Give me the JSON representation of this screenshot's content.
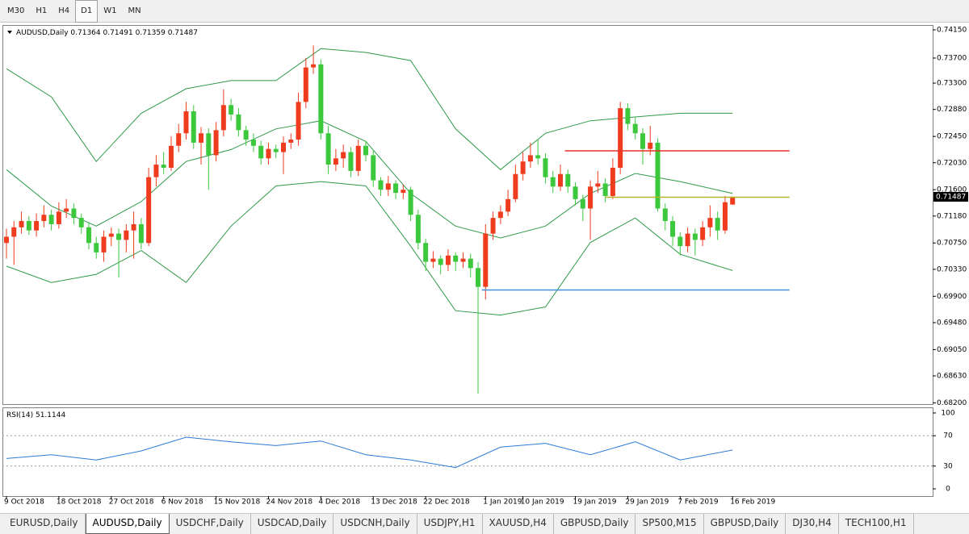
{
  "toolbar": [
    "M30",
    "H1",
    "H4",
    "D1",
    "W1",
    "MN"
  ],
  "tabs": [
    "EURUSD,Daily",
    "AUDUSD,Daily",
    "USDCHF,Daily",
    "USDCAD,Daily",
    "USDCNH,Daily",
    "USDJPY,H1",
    "XAUUSD,H4",
    "GBPUSD,Daily",
    "SP500,M15",
    "GBPUSD,Daily",
    "DJ30,H4",
    "TECH100,H1"
  ],
  "chart_data": {
    "type": "candlestick",
    "title": "AUDUSD,Daily",
    "up_color": "#f03c1e",
    "down_color": "#3cc83c",
    "ohlc": [
      [
        0.7075,
        0.7098,
        0.705,
        0.7085
      ],
      [
        0.7085,
        0.711,
        0.704,
        0.71
      ],
      [
        0.71,
        0.7125,
        0.709,
        0.711
      ],
      [
        0.711,
        0.7118,
        0.7088,
        0.7095
      ],
      [
        0.7095,
        0.7122,
        0.7085,
        0.711
      ],
      [
        0.711,
        0.7135,
        0.71,
        0.712
      ],
      [
        0.712,
        0.7128,
        0.7095,
        0.7105
      ],
      [
        0.7105,
        0.714,
        0.7098,
        0.7125
      ],
      [
        0.7125,
        0.7145,
        0.7115,
        0.713
      ],
      [
        0.713,
        0.7138,
        0.7105,
        0.7115
      ],
      [
        0.7115,
        0.7122,
        0.709,
        0.71
      ],
      [
        0.71,
        0.7108,
        0.7065,
        0.7075
      ],
      [
        0.7075,
        0.7085,
        0.705,
        0.706
      ],
      [
        0.706,
        0.7095,
        0.7045,
        0.7085
      ],
      [
        0.7085,
        0.71,
        0.707,
        0.709
      ],
      [
        0.709,
        0.7098,
        0.702,
        0.708
      ],
      [
        0.708,
        0.7105,
        0.706,
        0.7095
      ],
      [
        0.7095,
        0.7125,
        0.705,
        0.7105
      ],
      [
        0.7105,
        0.7115,
        0.7065,
        0.7075
      ],
      [
        0.7075,
        0.7195,
        0.707,
        0.718
      ],
      [
        0.718,
        0.7215,
        0.7165,
        0.72
      ],
      [
        0.72,
        0.722,
        0.7185,
        0.7195
      ],
      [
        0.7195,
        0.7245,
        0.719,
        0.723
      ],
      [
        0.723,
        0.7265,
        0.722,
        0.725
      ],
      [
        0.725,
        0.73,
        0.724,
        0.7285
      ],
      [
        0.7285,
        0.7295,
        0.7225,
        0.7235
      ],
      [
        0.7235,
        0.726,
        0.72,
        0.725
      ],
      [
        0.725,
        0.7258,
        0.716,
        0.7215
      ],
      [
        0.7215,
        0.7268,
        0.7205,
        0.7255
      ],
      [
        0.7255,
        0.732,
        0.7245,
        0.7295
      ],
      [
        0.7295,
        0.7305,
        0.727,
        0.728
      ],
      [
        0.728,
        0.729,
        0.7245,
        0.7255
      ],
      [
        0.7255,
        0.7262,
        0.723,
        0.724
      ],
      [
        0.724,
        0.725,
        0.722,
        0.723
      ],
      [
        0.723,
        0.7238,
        0.72,
        0.721
      ],
      [
        0.721,
        0.7235,
        0.72,
        0.7225
      ],
      [
        0.7225,
        0.7232,
        0.721,
        0.722
      ],
      [
        0.722,
        0.7245,
        0.7185,
        0.7235
      ],
      [
        0.7235,
        0.725,
        0.7225,
        0.724
      ],
      [
        0.724,
        0.7315,
        0.723,
        0.73
      ],
      [
        0.73,
        0.737,
        0.729,
        0.7355
      ],
      [
        0.7355,
        0.739,
        0.7345,
        0.736
      ],
      [
        0.736,
        0.7368,
        0.724,
        0.725
      ],
      [
        0.725,
        0.7262,
        0.7185,
        0.72
      ],
      [
        0.72,
        0.7225,
        0.719,
        0.721
      ],
      [
        0.721,
        0.7232,
        0.7195,
        0.722
      ],
      [
        0.722,
        0.7228,
        0.718,
        0.719
      ],
      [
        0.719,
        0.724,
        0.7182,
        0.723
      ],
      [
        0.723,
        0.7238,
        0.7205,
        0.7215
      ],
      [
        0.7215,
        0.7222,
        0.7165,
        0.7175
      ],
      [
        0.7175,
        0.718,
        0.715,
        0.716
      ],
      [
        0.716,
        0.7182,
        0.715,
        0.717
      ],
      [
        0.717,
        0.7175,
        0.7145,
        0.7155
      ],
      [
        0.7155,
        0.7168,
        0.7145,
        0.716
      ],
      [
        0.716,
        0.7165,
        0.711,
        0.712
      ],
      [
        0.712,
        0.7128,
        0.7065,
        0.7075
      ],
      [
        0.7075,
        0.7082,
        0.703,
        0.7045
      ],
      [
        0.7045,
        0.7062,
        0.7035,
        0.705
      ],
      [
        0.705,
        0.7055,
        0.7025,
        0.704
      ],
      [
        0.704,
        0.7065,
        0.703,
        0.7055
      ],
      [
        0.7055,
        0.706,
        0.703,
        0.7045
      ],
      [
        0.7045,
        0.706,
        0.7035,
        0.705
      ],
      [
        0.705,
        0.7058,
        0.702,
        0.7035
      ],
      [
        0.7035,
        0.7045,
        0.6835,
        0.7005
      ],
      [
        0.7005,
        0.7105,
        0.6985,
        0.709
      ],
      [
        0.709,
        0.7125,
        0.708,
        0.7115
      ],
      [
        0.7115,
        0.7135,
        0.7105,
        0.7125
      ],
      [
        0.7125,
        0.716,
        0.7118,
        0.7145
      ],
      [
        0.7145,
        0.72,
        0.714,
        0.7185
      ],
      [
        0.7185,
        0.722,
        0.7175,
        0.7205
      ],
      [
        0.7205,
        0.7235,
        0.7195,
        0.7215
      ],
      [
        0.7215,
        0.724,
        0.72,
        0.721
      ],
      [
        0.721,
        0.7218,
        0.717,
        0.718
      ],
      [
        0.718,
        0.719,
        0.7155,
        0.7165
      ],
      [
        0.7165,
        0.72,
        0.7158,
        0.7185
      ],
      [
        0.7185,
        0.7192,
        0.7155,
        0.7165
      ],
      [
        0.7165,
        0.7172,
        0.7135,
        0.7145
      ],
      [
        0.7145,
        0.7152,
        0.711,
        0.713
      ],
      [
        0.713,
        0.7175,
        0.708,
        0.7165
      ],
      [
        0.7165,
        0.719,
        0.7155,
        0.717
      ],
      [
        0.717,
        0.7178,
        0.714,
        0.715
      ],
      [
        0.715,
        0.721,
        0.7145,
        0.7195
      ],
      [
        0.7195,
        0.73,
        0.7185,
        0.729
      ],
      [
        0.729,
        0.7298,
        0.7255,
        0.7265
      ],
      [
        0.7265,
        0.7275,
        0.724,
        0.725
      ],
      [
        0.725,
        0.7258,
        0.72,
        0.7225
      ],
      [
        0.7225,
        0.7262,
        0.7215,
        0.7235
      ],
      [
        0.7235,
        0.7242,
        0.7125,
        0.713
      ],
      [
        0.713,
        0.7138,
        0.7095,
        0.711
      ],
      [
        0.711,
        0.7118,
        0.707,
        0.7085
      ],
      [
        0.7085,
        0.7092,
        0.7055,
        0.707
      ],
      [
        0.707,
        0.71,
        0.706,
        0.709
      ],
      [
        0.709,
        0.7098,
        0.7055,
        0.708
      ],
      [
        0.708,
        0.711,
        0.707,
        0.71
      ],
      [
        0.71,
        0.7135,
        0.7085,
        0.7115
      ],
      [
        0.7115,
        0.7125,
        0.708,
        0.7095
      ],
      [
        0.7095,
        0.715,
        0.709,
        0.714
      ],
      [
        0.71364,
        0.71491,
        0.71359,
        0.71487
      ]
    ],
    "xlim": [
      -0.54,
      123.73
    ],
    "ylim": [
      0.6818,
      0.74227
    ],
    "yticks": [
      {
        "value": 0.7415,
        "label": "0.74150"
      },
      {
        "value": 0.737,
        "label": "0.73700"
      },
      {
        "value": 0.733,
        "label": "0.73300"
      },
      {
        "value": 0.7288,
        "label": "0.72880"
      },
      {
        "value": 0.7245,
        "label": "0.72450"
      },
      {
        "value": 0.7203,
        "label": "0.72030"
      },
      {
        "value": 0.716,
        "label": "0.71600"
      },
      {
        "value": 0.7118,
        "label": "0.71180"
      },
      {
        "value": 0.7075,
        "label": "0.70750"
      },
      {
        "value": 0.7033,
        "label": "0.70330"
      },
      {
        "value": 0.699,
        "label": "0.69900"
      },
      {
        "value": 0.6948,
        "label": "0.69480"
      },
      {
        "value": 0.6905,
        "label": "0.69050"
      },
      {
        "value": 0.6863,
        "label": "0.68630"
      },
      {
        "value": 0.682,
        "label": "0.68200"
      }
    ],
    "xticks": [
      {
        "value": 0,
        "label": "9 Oct 2018"
      },
      {
        "value": 7,
        "label": "18 Oct 2018"
      },
      {
        "value": 14,
        "label": "27 Oct 2018"
      },
      {
        "value": 21,
        "label": "6 Nov 2018"
      },
      {
        "value": 28,
        "label": "15 Nov 2018"
      },
      {
        "value": 35,
        "label": "24 Nov 2018"
      },
      {
        "value": 42,
        "label": "4 Dec 2018"
      },
      {
        "value": 49,
        "label": "13 Dec 2018"
      },
      {
        "value": 56,
        "label": "22 Dec 2018"
      },
      {
        "value": 64,
        "label": "1 Jan 2019"
      },
      {
        "value": 69,
        "label": "10 Jan 2019"
      },
      {
        "value": 76,
        "label": "19 Jan 2019"
      },
      {
        "value": 83,
        "label": "29 Jan 2019"
      },
      {
        "value": 90,
        "label": "7 Feb 2019"
      },
      {
        "value": 97,
        "label": "16 Feb 2019"
      }
    ],
    "bands": {
      "color": "#2f9a4a",
      "x": [
        0,
        6,
        12,
        18,
        24,
        30,
        36,
        42,
        48,
        54,
        60,
        66,
        72,
        78,
        84,
        90,
        97
      ],
      "upper": [
        0.7353,
        0.7308,
        0.7205,
        0.7282,
        0.7321,
        0.7334,
        0.7334,
        0.7385,
        0.7379,
        0.7366,
        0.7257,
        0.7192,
        0.725,
        0.727,
        0.7276,
        0.7282,
        0.7282
      ],
      "middle": [
        0.7192,
        0.7134,
        0.7102,
        0.7141,
        0.7205,
        0.7224,
        0.7257,
        0.727,
        0.7237,
        0.7154,
        0.7102,
        0.7083,
        0.7102,
        0.7154,
        0.7186,
        0.7173,
        0.7154
      ],
      "lower": [
        0.7038,
        0.7012,
        0.7025,
        0.7063,
        0.7012,
        0.7102,
        0.7166,
        0.7173,
        0.7166,
        0.707,
        0.6967,
        0.696,
        0.6973,
        0.7076,
        0.7115,
        0.7057,
        0.7031
      ]
    },
    "levels": [
      {
        "value": 0.7222,
        "start": 74.6,
        "end": 104.6,
        "color": "#e8302a"
      },
      {
        "value": 0.7148,
        "start": 80.0,
        "end": 104.6,
        "color": "#b5b52a"
      },
      {
        "value": 0.7,
        "start": 63.5,
        "end": 104.6,
        "color": "#3d8fe0"
      }
    ],
    "rsi": {
      "title": "RSI(14)",
      "color": "#2b7bd6",
      "x": [
        0,
        6,
        12,
        18,
        24,
        30,
        36,
        42,
        48,
        54,
        60,
        66,
        72,
        78,
        84,
        90,
        97
      ],
      "values": [
        40,
        45,
        38,
        50,
        68,
        62,
        57,
        63,
        45,
        38,
        28,
        55,
        60,
        45,
        62,
        38,
        51.1144
      ],
      "ylim": [
        -9.6,
        107.4
      ],
      "yticks": [
        100,
        70,
        30,
        0
      ],
      "levels": [
        70,
        30
      ]
    }
  }
}
